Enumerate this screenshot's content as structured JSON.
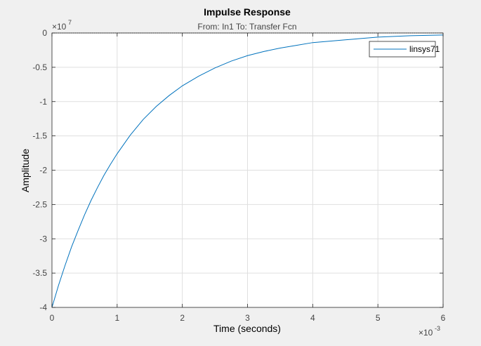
{
  "chart_data": {
    "type": "line",
    "title": "Impulse Response",
    "subtitle": "From: In1  To: Transfer Fcn",
    "xlabel": "Time (seconds)",
    "ylabel": "Amplitude",
    "x_exponent_label": "×10",
    "x_exponent_power": "-3",
    "y_exponent_label": "×10",
    "y_exponent_power": "7",
    "xlim": [
      0,
      6
    ],
    "ylim": [
      -4,
      0
    ],
    "xticks": [
      0,
      1,
      2,
      3,
      4,
      5,
      6
    ],
    "yticks": [
      0,
      -0.5,
      -1,
      -1.5,
      -2,
      -2.5,
      -3,
      -3.5,
      -4
    ],
    "xtick_labels": [
      "0",
      "1",
      "2",
      "3",
      "4",
      "5",
      "6"
    ],
    "ytick_labels": [
      "0",
      "-0.5",
      "-1",
      "-1.5",
      "-2",
      "-2.5",
      "-3",
      "-3.5",
      "-4"
    ],
    "grid": true,
    "legend_position": "top-right",
    "series": [
      {
        "name": "linsys71",
        "color": "#0072bd",
        "x": [
          0,
          0.1,
          0.2,
          0.3,
          0.4,
          0.5,
          0.6,
          0.7,
          0.8,
          0.9,
          1.0,
          1.2,
          1.4,
          1.6,
          1.8,
          2.0,
          2.25,
          2.5,
          2.75,
          3.0,
          3.25,
          3.5,
          3.75,
          4.0,
          4.5,
          5.0,
          5.5,
          6.0
        ],
        "y": [
          -4.0,
          -3.68,
          -3.39,
          -3.12,
          -2.88,
          -2.65,
          -2.44,
          -2.25,
          -2.07,
          -1.91,
          -1.76,
          -1.49,
          -1.26,
          -1.07,
          -0.91,
          -0.77,
          -0.63,
          -0.51,
          -0.41,
          -0.33,
          -0.27,
          -0.22,
          -0.18,
          -0.14,
          -0.1,
          -0.06,
          -0.04,
          -0.03
        ]
      }
    ]
  }
}
